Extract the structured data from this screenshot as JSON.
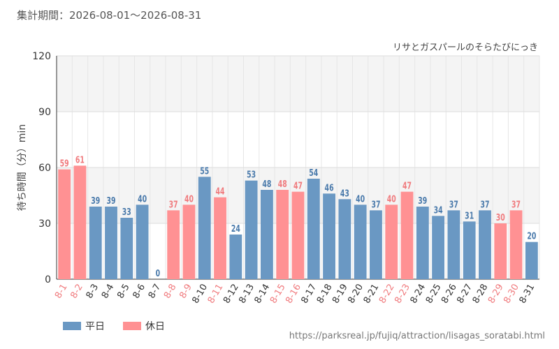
{
  "header": {
    "period": "集計期間：2026-08-01～2026-08-31"
  },
  "footer": {
    "url": "https://parksreal.jp/fujiq/attraction/lisagas_soratabi.html"
  },
  "colors": {
    "weekday": "#6a98c3",
    "holiday": "#ff9193",
    "weekday_label": "#4a7aab",
    "holiday_label": "#f07b7e"
  },
  "chart_data": {
    "type": "bar",
    "title": "リサとガスパールのそらたびにっき",
    "ylabel": "待ち時間（分）min",
    "xlabel": "",
    "ylim": [
      0,
      120
    ],
    "yticks": [
      0,
      30,
      60,
      90,
      120
    ],
    "grid": true,
    "legend": {
      "position": "bottom-left",
      "entries": [
        {
          "name": "平日",
          "key": "weekday"
        },
        {
          "name": "休日",
          "key": "holiday"
        }
      ]
    },
    "categories": [
      "8-1",
      "8-2",
      "8-3",
      "8-4",
      "8-5",
      "8-6",
      "8-7",
      "8-8",
      "8-9",
      "8-10",
      "8-11",
      "8-12",
      "8-13",
      "8-14",
      "8-15",
      "8-16",
      "8-17",
      "8-18",
      "8-19",
      "8-20",
      "8-21",
      "8-22",
      "8-23",
      "8-24",
      "8-25",
      "8-26",
      "8-27",
      "8-28",
      "8-29",
      "8-30",
      "8-31"
    ],
    "values": [
      59,
      61,
      39,
      39,
      33,
      40,
      0,
      37,
      40,
      55,
      44,
      24,
      53,
      48,
      48,
      47,
      54,
      46,
      43,
      40,
      37,
      40,
      47,
      39,
      34,
      37,
      31,
      37,
      30,
      37,
      20
    ],
    "day_type": [
      "holiday",
      "holiday",
      "weekday",
      "weekday",
      "weekday",
      "weekday",
      "weekday",
      "holiday",
      "holiday",
      "weekday",
      "holiday",
      "weekday",
      "weekday",
      "weekday",
      "holiday",
      "holiday",
      "weekday",
      "weekday",
      "weekday",
      "weekday",
      "weekday",
      "holiday",
      "holiday",
      "weekday",
      "weekday",
      "weekday",
      "weekday",
      "weekday",
      "holiday",
      "holiday",
      "weekday"
    ]
  }
}
